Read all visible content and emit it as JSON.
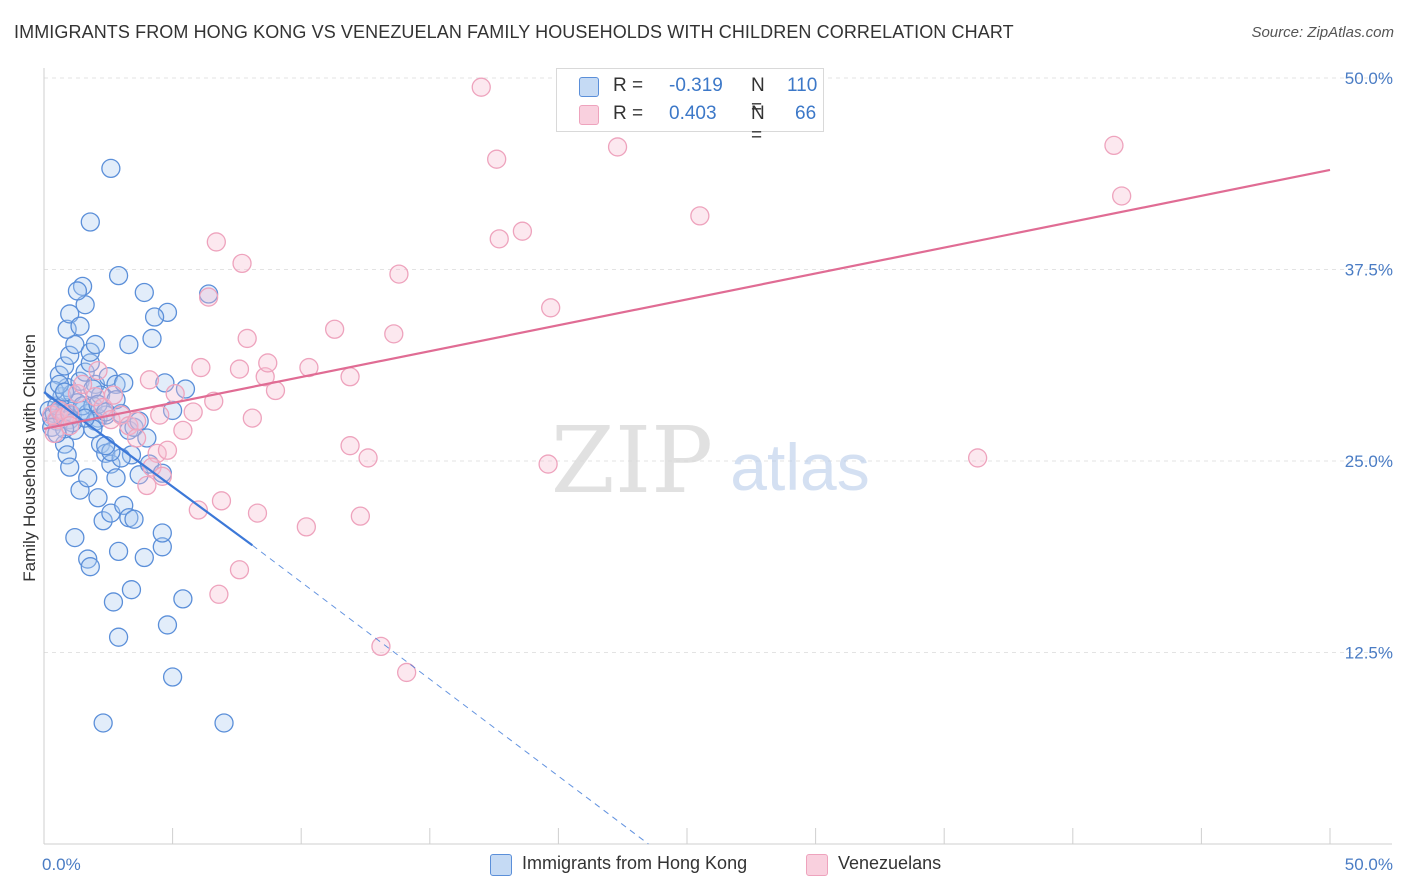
{
  "title": "IMMIGRANTS FROM HONG KONG VS VENEZUELAN FAMILY HOUSEHOLDS WITH CHILDREN CORRELATION CHART",
  "source": "Source: ZipAtlas.com",
  "watermark": {
    "zip": "ZIP",
    "atlas": "atlas"
  },
  "colors": {
    "blue": "#3c78d8",
    "blue_fill": "rgba(173,202,240,0.35)",
    "blue_stroke": "#5b8fd9",
    "pink": "#e06c94",
    "pink_fill": "rgba(247,188,208,0.35)",
    "pink_stroke": "#eea3bd",
    "tick": "#4a7cc4",
    "grid": "#e3e3e3"
  },
  "legend_top": {
    "rows": [
      {
        "r_label": "R = ",
        "r_value": "-0.319",
        "n_label": "N = ",
        "n_value": "110",
        "series": "blue"
      },
      {
        "r_label": "R = ",
        "r_value": "0.403",
        "n_label": "N = ",
        "n_value": "66",
        "series": "pink"
      }
    ]
  },
  "legend_bottom": [
    {
      "label": "Immigrants from Hong Kong",
      "series": "blue"
    },
    {
      "label": "Venezuelans",
      "series": "pink"
    }
  ],
  "chart_data": {
    "type": "scatter",
    "title": "IMMIGRANTS FROM HONG KONG VS VENEZUELAN FAMILY HOUSEHOLDS WITH CHILDREN CORRELATION CHART",
    "xlabel": "",
    "ylabel": "Family Households with Children",
    "xlim": [
      0,
      50
    ],
    "ylim": [
      0,
      50
    ],
    "x_tick_labels": [
      "0.0%",
      "50.0%"
    ],
    "y_ticks": [
      12.5,
      25.0,
      37.5,
      50.0
    ],
    "y_tick_labels": [
      "12.5%",
      "25.0%",
      "37.5%",
      "50.0%"
    ],
    "grid": true,
    "legend": "bottom",
    "series": [
      {
        "name": "Immigrants from Hong Kong",
        "color": "blue",
        "r": -0.319,
        "n": 110,
        "trend": {
          "x0": 0,
          "y0": 29.5,
          "x1": 8.1,
          "y1": 19.5,
          "dash_x1": 23.5,
          "dash_y1": 0
        },
        "points": [
          [
            0.2,
            28.3
          ],
          [
            0.3,
            27.8
          ],
          [
            0.4,
            28.1
          ],
          [
            0.5,
            27.6
          ],
          [
            0.6,
            28.4
          ],
          [
            0.7,
            27.9
          ],
          [
            0.8,
            28.2
          ],
          [
            0.9,
            28.5
          ],
          [
            1.0,
            27.7
          ],
          [
            1.1,
            28.0
          ],
          [
            0.3,
            27.2
          ],
          [
            0.5,
            28.6
          ],
          [
            0.7,
            29.2
          ],
          [
            0.9,
            29.8
          ],
          [
            1.1,
            29.4
          ],
          [
            1.3,
            28.8
          ],
          [
            1.5,
            28.3
          ],
          [
            1.7,
            28.1
          ],
          [
            1.9,
            28.6
          ],
          [
            2.1,
            27.8
          ],
          [
            0.6,
            30.6
          ],
          [
            0.8,
            31.2
          ],
          [
            1.0,
            31.9
          ],
          [
            1.2,
            32.6
          ],
          [
            1.4,
            30.2
          ],
          [
            1.6,
            30.8
          ],
          [
            1.8,
            31.4
          ],
          [
            2.0,
            30.0
          ],
          [
            2.2,
            29.3
          ],
          [
            2.4,
            28.0
          ],
          [
            0.9,
            33.6
          ],
          [
            1.0,
            34.6
          ],
          [
            1.4,
            33.8
          ],
          [
            1.6,
            35.2
          ],
          [
            1.8,
            32.1
          ],
          [
            2.0,
            32.6
          ],
          [
            2.5,
            30.5
          ],
          [
            2.8,
            30.0
          ],
          [
            3.0,
            28.1
          ],
          [
            3.3,
            27.0
          ],
          [
            0.8,
            26.1
          ],
          [
            0.9,
            25.4
          ],
          [
            1.0,
            24.6
          ],
          [
            1.2,
            27.0
          ],
          [
            1.5,
            28.6
          ],
          [
            2.0,
            27.6
          ],
          [
            2.2,
            26.1
          ],
          [
            2.4,
            25.5
          ],
          [
            2.6,
            24.8
          ],
          [
            2.8,
            23.9
          ],
          [
            1.4,
            23.1
          ],
          [
            1.7,
            23.9
          ],
          [
            2.1,
            22.6
          ],
          [
            2.3,
            21.1
          ],
          [
            2.6,
            21.6
          ],
          [
            3.1,
            22.1
          ],
          [
            3.3,
            21.3
          ],
          [
            3.5,
            21.2
          ],
          [
            3.7,
            24.1
          ],
          [
            4.1,
            24.8
          ],
          [
            1.2,
            20.0
          ],
          [
            1.7,
            18.6
          ],
          [
            1.8,
            18.1
          ],
          [
            2.9,
            19.1
          ],
          [
            3.9,
            18.7
          ],
          [
            4.6,
            19.4
          ],
          [
            4.6,
            20.3
          ],
          [
            3.4,
            16.6
          ],
          [
            2.7,
            15.8
          ],
          [
            5.4,
            16.0
          ],
          [
            2.9,
            13.5
          ],
          [
            4.8,
            14.3
          ],
          [
            5.0,
            10.9
          ],
          [
            2.3,
            7.9
          ],
          [
            7.0,
            7.9
          ],
          [
            2.6,
            44.1
          ],
          [
            1.8,
            40.6
          ],
          [
            2.9,
            37.1
          ],
          [
            1.5,
            36.4
          ],
          [
            1.3,
            36.1
          ],
          [
            3.9,
            36.0
          ],
          [
            4.8,
            34.7
          ],
          [
            4.3,
            34.4
          ],
          [
            4.2,
            33.0
          ],
          [
            3.3,
            32.6
          ],
          [
            3.1,
            30.1
          ],
          [
            2.8,
            29.0
          ],
          [
            1.9,
            29.7
          ],
          [
            2.1,
            28.7
          ],
          [
            2.4,
            28.2
          ],
          [
            3.5,
            27.2
          ],
          [
            4.0,
            26.5
          ],
          [
            4.6,
            24.2
          ],
          [
            4.7,
            30.1
          ],
          [
            5.0,
            28.3
          ],
          [
            5.5,
            29.7
          ],
          [
            3.7,
            27.6
          ],
          [
            3.4,
            25.4
          ],
          [
            3.0,
            25.2
          ],
          [
            2.6,
            25.6
          ],
          [
            2.4,
            26.0
          ],
          [
            1.9,
            27.1
          ],
          [
            1.6,
            27.8
          ],
          [
            1.1,
            27.5
          ],
          [
            0.8,
            27.1
          ],
          [
            0.5,
            26.8
          ],
          [
            0.4,
            29.6
          ],
          [
            0.6,
            30.0
          ],
          [
            0.8,
            29.5
          ],
          [
            6.4,
            35.9
          ]
        ]
      },
      {
        "name": "Venezuelans",
        "color": "pink",
        "r": 0.403,
        "n": 66,
        "trend": {
          "x0": 0,
          "y0": 27.1,
          "x1": 50,
          "y1": 44.0
        },
        "points": [
          [
            0.3,
            28.0
          ],
          [
            0.5,
            27.7
          ],
          [
            0.6,
            28.3
          ],
          [
            0.8,
            27.9
          ],
          [
            1.0,
            28.1
          ],
          [
            1.3,
            29.4
          ],
          [
            1.5,
            30.0
          ],
          [
            2.0,
            29.2
          ],
          [
            2.3,
            28.5
          ],
          [
            2.6,
            27.7
          ],
          [
            0.4,
            26.8
          ],
          [
            1.0,
            27.3
          ],
          [
            2.1,
            30.9
          ],
          [
            2.7,
            29.3
          ],
          [
            3.0,
            28.0
          ],
          [
            3.3,
            27.3
          ],
          [
            3.6,
            27.6
          ],
          [
            4.1,
            30.3
          ],
          [
            4.5,
            28.0
          ],
          [
            5.1,
            29.4
          ],
          [
            3.6,
            26.5
          ],
          [
            4.4,
            25.5
          ],
          [
            4.8,
            25.7
          ],
          [
            4.2,
            24.6
          ],
          [
            4.6,
            24.0
          ],
          [
            4.0,
            23.4
          ],
          [
            5.4,
            27.0
          ],
          [
            5.8,
            28.2
          ],
          [
            6.1,
            31.1
          ],
          [
            6.6,
            28.9
          ],
          [
            6.4,
            35.7
          ],
          [
            6.7,
            39.3
          ],
          [
            7.7,
            37.9
          ],
          [
            7.9,
            33.0
          ],
          [
            7.6,
            31.0
          ],
          [
            8.1,
            27.8
          ],
          [
            8.6,
            30.5
          ],
          [
            8.7,
            31.4
          ],
          [
            9.0,
            29.6
          ],
          [
            10.3,
            31.1
          ],
          [
            11.3,
            33.6
          ],
          [
            11.9,
            30.5
          ],
          [
            11.9,
            26.0
          ],
          [
            12.6,
            25.2
          ],
          [
            13.6,
            33.3
          ],
          [
            13.8,
            37.2
          ],
          [
            6.9,
            22.4
          ],
          [
            8.3,
            21.6
          ],
          [
            10.2,
            20.7
          ],
          [
            12.3,
            21.4
          ],
          [
            6.0,
            21.8
          ],
          [
            7.6,
            17.9
          ],
          [
            6.8,
            16.3
          ],
          [
            13.1,
            12.9
          ],
          [
            14.1,
            11.2
          ],
          [
            17.0,
            49.4
          ],
          [
            17.6,
            44.7
          ],
          [
            17.7,
            39.5
          ],
          [
            18.6,
            40.0
          ],
          [
            19.6,
            24.8
          ],
          [
            19.7,
            35.0
          ],
          [
            22.3,
            45.5
          ],
          [
            25.5,
            41.0
          ],
          [
            36.3,
            25.2
          ],
          [
            41.6,
            45.6
          ],
          [
            41.9,
            42.3
          ]
        ]
      }
    ]
  }
}
